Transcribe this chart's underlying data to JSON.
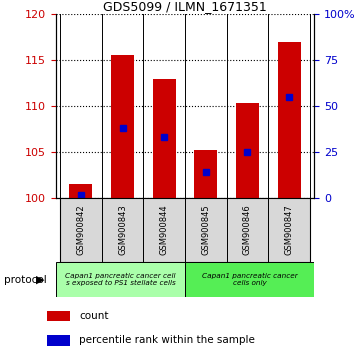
{
  "title": "GDS5099 / ILMN_1671351",
  "categories": [
    "GSM900842",
    "GSM900843",
    "GSM900844",
    "GSM900845",
    "GSM900846",
    "GSM900847"
  ],
  "count_values": [
    101.5,
    115.6,
    113.0,
    105.2,
    110.3,
    117.0
  ],
  "percentile_values": [
    2.0,
    38.0,
    33.0,
    14.0,
    25.0,
    55.0
  ],
  "ylim_left": [
    100,
    120
  ],
  "ylim_right": [
    0,
    100
  ],
  "yticks_left": [
    100,
    105,
    110,
    115,
    120
  ],
  "yticks_right": [
    0,
    25,
    50,
    75,
    100
  ],
  "ytick_labels_right": [
    "0",
    "25",
    "50",
    "75",
    "100%"
  ],
  "bar_color": "#cc0000",
  "percentile_color": "#0000cc",
  "bar_width": 0.55,
  "group1_label": "Capan1 pancreatic cancer cell\ns exposed to PS1 stellate cells",
  "group2_label": "Capan1 pancreatic cancer\ncells only",
  "group1_color": "#aaffaa",
  "group2_color": "#55ee55",
  "protocol_label": "protocol",
  "legend_count_label": "count",
  "legend_percentile_label": "percentile rank within the sample",
  "sample_box_color": "#d8d8d8",
  "plot_bg": "#ffffff",
  "left_tick_color": "#cc0000",
  "right_tick_color": "#0000cc",
  "title_fontsize": 9
}
